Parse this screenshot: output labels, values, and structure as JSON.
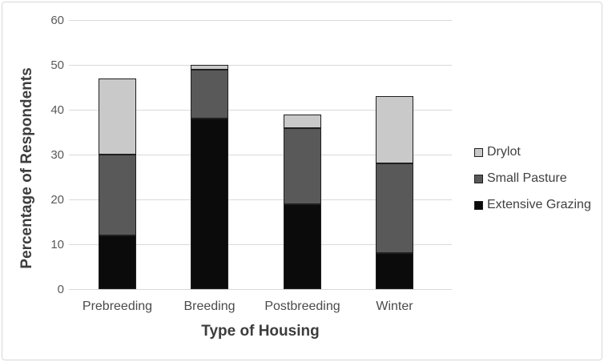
{
  "chart_data": {
    "type": "bar",
    "stacked": true,
    "title": "",
    "xlabel": "Type of Housing",
    "ylabel": "Percentage of Respondents",
    "categories": [
      "Prebreeding",
      "Breeding",
      "Postbreeding",
      "Winter"
    ],
    "series": [
      {
        "name": "Extensive Grazing",
        "color": "#0b0b0b",
        "values": [
          12,
          38,
          19,
          8
        ]
      },
      {
        "name": "Small Pasture",
        "color": "#595959",
        "values": [
          18,
          11,
          17,
          20
        ]
      },
      {
        "name": "Drylot",
        "color": "#c8c9c8",
        "values": [
          17,
          1,
          3,
          15
        ]
      }
    ],
    "stack_totals": [
      47,
      50,
      39,
      43
    ],
    "ylim": [
      0,
      60
    ],
    "yticks": [
      0,
      10,
      20,
      30,
      40,
      50,
      60
    ],
    "grid": true,
    "legend_position": "right",
    "legend_order_top_to_bottom": [
      "Drylot",
      "Small Pasture",
      "Extensive Grazing"
    ],
    "colors": {
      "bar_border": "#1f1f1f",
      "gridline": "#d9d9d9",
      "tick_text": "#595959",
      "label_text": "#4a4a4a",
      "title_text": "#3d3d3d",
      "figure_border": "#d8d8d8",
      "background": "#ffffff"
    }
  }
}
